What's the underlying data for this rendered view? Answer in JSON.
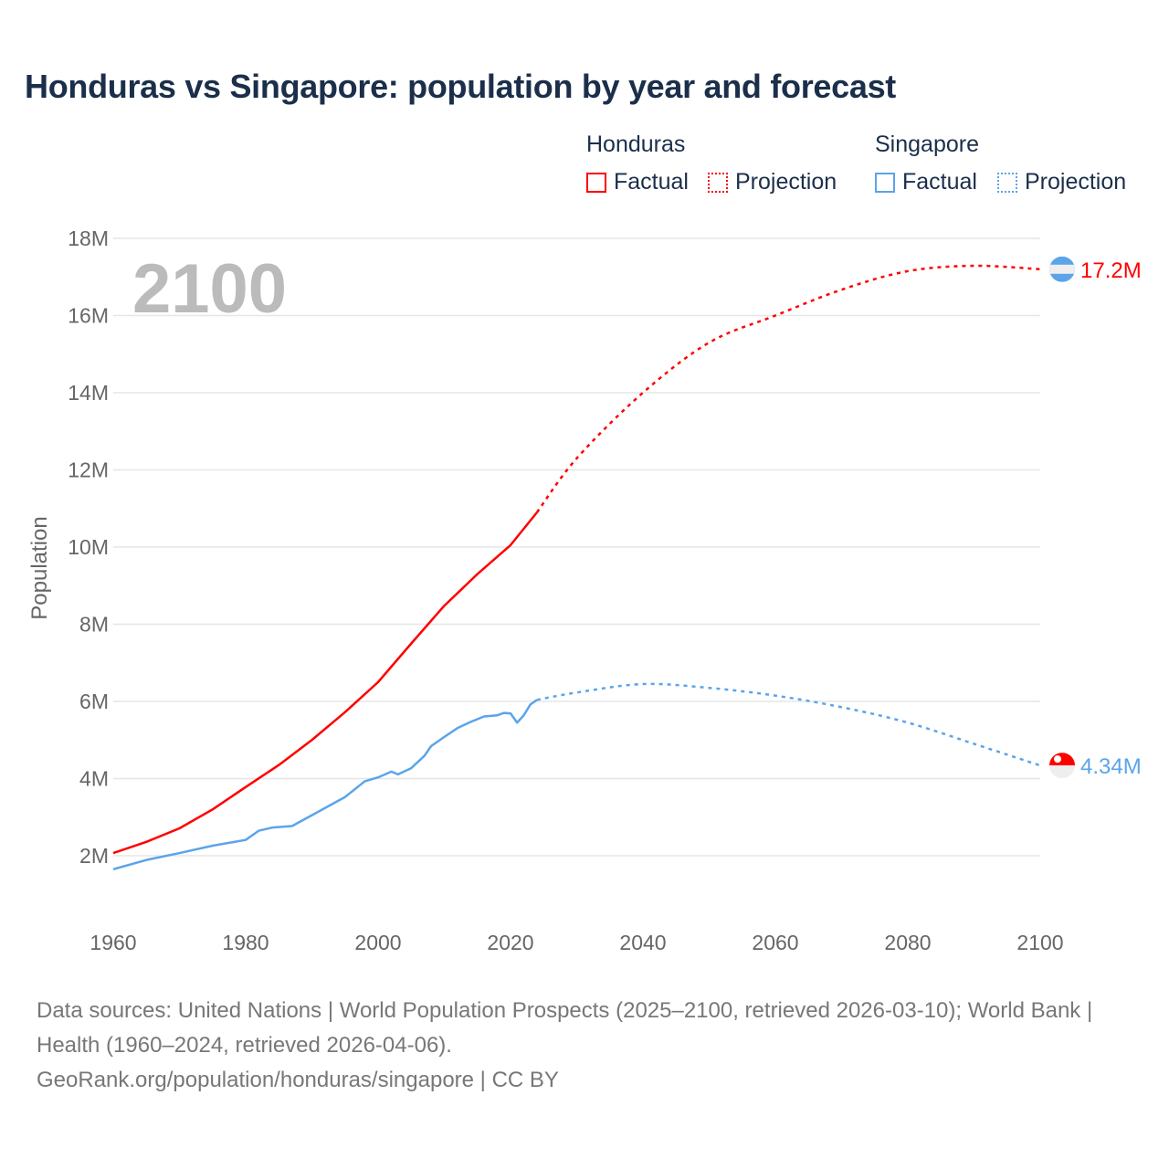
{
  "title": "Honduras vs Singapore: population by year and forecast",
  "legend": {
    "groups": [
      {
        "name": "Honduras",
        "color": "#ff0000",
        "factual": "Factual",
        "projection": "Projection"
      },
      {
        "name": "Singapore",
        "color": "#5ba4ea",
        "factual": "Factual",
        "projection": "Projection"
      }
    ]
  },
  "year_label": "2100",
  "footer": {
    "sources": "Data sources: United Nations | World Population Prospects (2025–2100, retrieved 2026-03-10); World Bank | Health (1960–2024, retrieved 2026-04-06).",
    "credit": "GeoRank.org/population/honduras/singapore | CC BY"
  },
  "chart_data": {
    "type": "line",
    "title": "Honduras vs Singapore: population by year and forecast",
    "xlabel": "",
    "ylabel": "Population",
    "xlim": [
      1960,
      2100
    ],
    "ylim": [
      0.6,
      18
    ],
    "xticks": [
      "1960",
      "1980",
      "2000",
      "2020",
      "2040",
      "2060",
      "2080",
      "2100"
    ],
    "xtick_values": [
      1960,
      1980,
      2000,
      2020,
      2040,
      2060,
      2080,
      2100
    ],
    "yticks": [
      "2M",
      "4M",
      "6M",
      "8M",
      "10M",
      "12M",
      "14M",
      "16M",
      "18M"
    ],
    "ytick_values": [
      2,
      4,
      6,
      8,
      10,
      12,
      14,
      16,
      18
    ],
    "units": "millions",
    "grid": true,
    "legend_position": "top-right",
    "series": [
      {
        "name": "Honduras Factual",
        "color": "#ff0000",
        "style": "solid",
        "x": [
          1960,
          1965,
          1970,
          1975,
          1980,
          1985,
          1990,
          1995,
          2000,
          2005,
          2010,
          2015,
          2020,
          2024
        ],
        "y": [
          2.07,
          2.36,
          2.71,
          3.2,
          3.78,
          4.35,
          5.0,
          5.72,
          6.5,
          7.5,
          8.48,
          9.3,
          10.05,
          10.9
        ]
      },
      {
        "name": "Honduras Projection",
        "color": "#ff0000",
        "style": "dotted",
        "x": [
          2024,
          2030,
          2040,
          2050,
          2060,
          2070,
          2080,
          2090,
          2100
        ],
        "y": [
          10.9,
          12.3,
          14.0,
          15.3,
          16.0,
          16.67,
          17.15,
          17.29,
          17.2
        ]
      },
      {
        "name": "Singapore Factual",
        "color": "#5ba4ea",
        "style": "solid",
        "x": [
          1960,
          1965,
          1970,
          1975,
          1980,
          1982,
          1984,
          1987,
          1990,
          1995,
          1998,
          2000,
          2002,
          2003,
          2005,
          2007,
          2008,
          2010,
          2012,
          2014,
          2016,
          2018,
          2019,
          2020,
          2021,
          2022,
          2023,
          2024
        ],
        "y": [
          1.65,
          1.89,
          2.07,
          2.26,
          2.41,
          2.65,
          2.73,
          2.77,
          3.05,
          3.52,
          3.93,
          4.03,
          4.18,
          4.11,
          4.27,
          4.59,
          4.84,
          5.08,
          5.31,
          5.47,
          5.61,
          5.64,
          5.7,
          5.69,
          5.45,
          5.64,
          5.92,
          6.04
        ]
      },
      {
        "name": "Singapore Projection",
        "color": "#5ba4ea",
        "style": "dotted",
        "x": [
          2024,
          2030,
          2040,
          2050,
          2060,
          2070,
          2080,
          2090,
          2100
        ],
        "y": [
          6.04,
          6.23,
          6.45,
          6.35,
          6.15,
          5.85,
          5.45,
          4.9,
          4.34
        ]
      }
    ],
    "end_labels": [
      {
        "country": "Honduras",
        "text": "17.2M",
        "value": 17.2,
        "color": "#ff0000"
      },
      {
        "country": "Singapore",
        "text": "4.34M",
        "value": 4.34,
        "color": "#5ba4ea"
      }
    ]
  }
}
